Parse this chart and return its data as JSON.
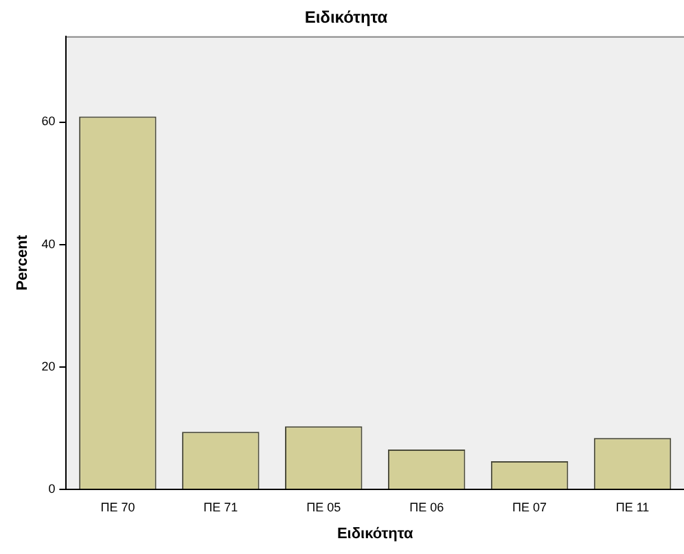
{
  "chart_data": {
    "type": "bar",
    "title": "Ειδικότητα",
    "xlabel": "Ειδικότητα",
    "ylabel": "Percent",
    "categories": [
      "ΠΕ 70",
      "ΠΕ 71",
      "ΠΕ 05",
      "ΠΕ 06",
      "ΠΕ 07",
      "ΠΕ 11"
    ],
    "values": [
      60.9,
      9.4,
      10.3,
      6.5,
      4.6,
      8.4
    ],
    "color": "#d3cf97",
    "ylim": [
      0,
      74
    ],
    "yticks": [
      0,
      20,
      40,
      60
    ],
    "grid": false,
    "legend": false
  }
}
